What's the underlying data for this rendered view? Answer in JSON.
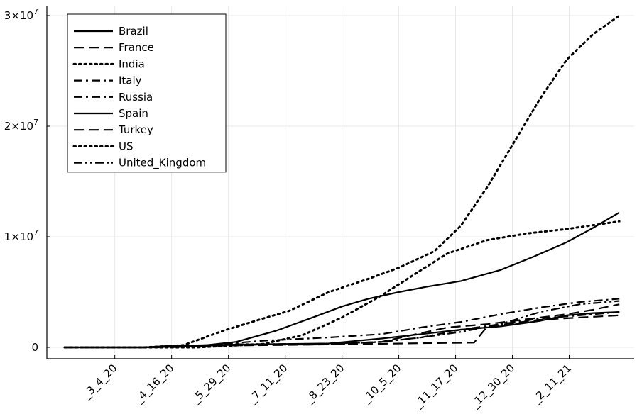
{
  "chart_data": {
    "type": "line",
    "title": "",
    "xlabel": "",
    "ylabel": "",
    "xlim_days": [
      0,
      400
    ],
    "ylim": [
      0,
      30000000
    ],
    "x_ticks": [
      {
        "day": 38,
        "label": "_3_4_20"
      },
      {
        "day": 81,
        "label": "_4_16_20"
      },
      {
        "day": 124,
        "label": "_5_29_20"
      },
      {
        "day": 167,
        "label": "_7_11_20"
      },
      {
        "day": 210,
        "label": "_8_23_20"
      },
      {
        "day": 253,
        "label": "_10_5_20"
      },
      {
        "day": 296,
        "label": "_11_17_20"
      },
      {
        "day": 339,
        "label": "_12_30_20"
      },
      {
        "day": 382,
        "label": "_2_11_21"
      }
    ],
    "y_ticks": [
      {
        "value": 0,
        "label": "0",
        "exp": ""
      },
      {
        "value": 10000000,
        "label": "1×10",
        "exp": "7"
      },
      {
        "value": 20000000,
        "label": "2×10",
        "exp": "7"
      },
      {
        "value": 30000000,
        "label": "3×10",
        "exp": "7"
      }
    ],
    "grid": true,
    "legend_position": "top-left",
    "series": [
      {
        "name": "Brazil",
        "dash": "solid",
        "points": [
          [
            0,
            0
          ],
          [
            60,
            0
          ],
          [
            100,
            100000
          ],
          [
            130,
            500000
          ],
          [
            160,
            1500000
          ],
          [
            190,
            2800000
          ],
          [
            210,
            3700000
          ],
          [
            230,
            4400000
          ],
          [
            253,
            5000000
          ],
          [
            275,
            5500000
          ],
          [
            300,
            6000000
          ],
          [
            330,
            7000000
          ],
          [
            355,
            8200000
          ],
          [
            380,
            9500000
          ],
          [
            400,
            10800000
          ],
          [
            420,
            12200000
          ]
        ]
      },
      {
        "name": "France",
        "dash": "dash",
        "points": [
          [
            0,
            0
          ],
          [
            60,
            0
          ],
          [
            80,
            100000
          ],
          [
            130,
            180000
          ],
          [
            200,
            280000
          ],
          [
            240,
            500000
          ],
          [
            270,
            1300000
          ],
          [
            290,
            1800000
          ],
          [
            320,
            2100000
          ],
          [
            340,
            2400000
          ],
          [
            360,
            2700000
          ],
          [
            380,
            3000000
          ],
          [
            400,
            3400000
          ],
          [
            420,
            3900000
          ]
        ]
      },
      {
        "name": "India",
        "dash": "dot",
        "points": [
          [
            0,
            0
          ],
          [
            100,
            0
          ],
          [
            150,
            300000
          ],
          [
            180,
            1100000
          ],
          [
            210,
            2700000
          ],
          [
            240,
            4700000
          ],
          [
            270,
            7000000
          ],
          [
            290,
            8500000
          ],
          [
            320,
            9700000
          ],
          [
            350,
            10300000
          ],
          [
            380,
            10700000
          ],
          [
            420,
            11400000
          ]
        ]
      },
      {
        "name": "Italy",
        "dash": "dashdot",
        "points": [
          [
            0,
            0
          ],
          [
            60,
            0
          ],
          [
            80,
            100000
          ],
          [
            130,
            230000
          ],
          [
            200,
            260000
          ],
          [
            240,
            500000
          ],
          [
            270,
            900000
          ],
          [
            300,
            1600000
          ],
          [
            330,
            2100000
          ],
          [
            360,
            2600000
          ],
          [
            390,
            2900000
          ],
          [
            420,
            3200000
          ]
        ]
      },
      {
        "name": "Russia",
        "dash": "dashdot",
        "points": [
          [
            0,
            0
          ],
          [
            80,
            0
          ],
          [
            110,
            200000
          ],
          [
            150,
            600000
          ],
          [
            200,
            900000
          ],
          [
            240,
            1200000
          ],
          [
            270,
            1800000
          ],
          [
            300,
            2300000
          ],
          [
            330,
            3000000
          ],
          [
            360,
            3600000
          ],
          [
            390,
            4100000
          ],
          [
            420,
            4400000
          ]
        ]
      },
      {
        "name": "Spain",
        "dash": "solid",
        "points": [
          [
            0,
            0
          ],
          [
            60,
            0
          ],
          [
            80,
            150000
          ],
          [
            130,
            250000
          ],
          [
            200,
            350000
          ],
          [
            240,
            800000
          ],
          [
            270,
            1200000
          ],
          [
            300,
            1600000
          ],
          [
            330,
            1900000
          ],
          [
            360,
            2400000
          ],
          [
            380,
            2900000
          ],
          [
            400,
            3100000
          ],
          [
            420,
            3200000
          ]
        ]
      },
      {
        "name": "Turkey",
        "dash": "dash",
        "points": [
          [
            0,
            0
          ],
          [
            60,
            0
          ],
          [
            80,
            100000
          ],
          [
            130,
            170000
          ],
          [
            200,
            260000
          ],
          [
            240,
            330000
          ],
          [
            270,
            380000
          ],
          [
            310,
            430000
          ],
          [
            320,
            1900000
          ],
          [
            340,
            2200000
          ],
          [
            360,
            2500000
          ],
          [
            390,
            2700000
          ],
          [
            420,
            2900000
          ]
        ]
      },
      {
        "name": "US",
        "dash": "dot",
        "points": [
          [
            0,
            0
          ],
          [
            60,
            0
          ],
          [
            90,
            200000
          ],
          [
            120,
            1500000
          ],
          [
            150,
            2600000
          ],
          [
            170,
            3300000
          ],
          [
            200,
            5000000
          ],
          [
            230,
            6200000
          ],
          [
            253,
            7200000
          ],
          [
            280,
            8700000
          ],
          [
            300,
            11000000
          ],
          [
            320,
            14500000
          ],
          [
            340,
            18500000
          ],
          [
            360,
            22500000
          ],
          [
            380,
            26000000
          ],
          [
            400,
            28300000
          ],
          [
            420,
            30000000
          ]
        ]
      },
      {
        "name": "United_Kingdom",
        "dash": "dashdotdot",
        "points": [
          [
            0,
            0
          ],
          [
            60,
            0
          ],
          [
            80,
            100000
          ],
          [
            130,
            280000
          ],
          [
            200,
            330000
          ],
          [
            240,
            500000
          ],
          [
            270,
            900000
          ],
          [
            300,
            1400000
          ],
          [
            330,
            2100000
          ],
          [
            360,
            3200000
          ],
          [
            390,
            3900000
          ],
          [
            420,
            4200000
          ]
        ]
      }
    ]
  }
}
